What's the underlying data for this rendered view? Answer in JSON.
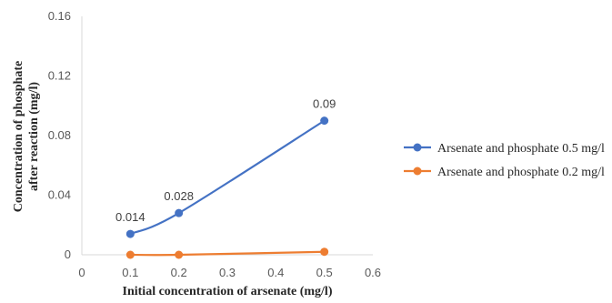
{
  "chart_data": {
    "type": "line",
    "title": "",
    "xlabel": "Initial concentration of arsenate (mg/l)",
    "ylabel_line1": "Concentration of phosphate",
    "ylabel_line2": "after reaction (mg/l)",
    "xlim": [
      0,
      0.6
    ],
    "ylim": [
      0,
      0.16
    ],
    "xticks": [
      "0",
      "0.1",
      "0.2",
      "0.3",
      "0.4",
      "0.5",
      "0.6"
    ],
    "yticks": [
      "0",
      "0.04",
      "0.08",
      "0.12",
      "0.16"
    ],
    "grid": false,
    "legend_position": "right",
    "smooth": true,
    "series": [
      {
        "name": "Arsenate and phosphate 0.5 mg/l",
        "color": "#4472C4",
        "x": [
          0.1,
          0.2,
          0.5
        ],
        "y": [
          0.014,
          0.028,
          0.09
        ],
        "labels": [
          "0.014",
          "0.028",
          "0.09"
        ]
      },
      {
        "name": "Arsenate and phosphate 0.2 mg/l",
        "color": "#ED7D31",
        "x": [
          0.1,
          0.2,
          0.5
        ],
        "y": [
          0.0,
          0.0,
          0.002
        ],
        "labels": []
      }
    ]
  }
}
